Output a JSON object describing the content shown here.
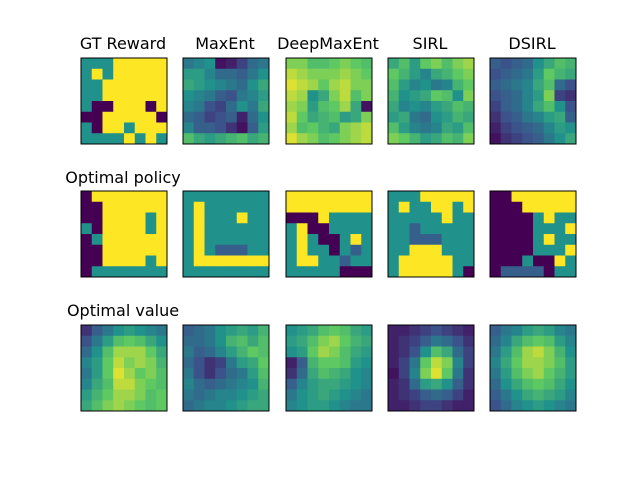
{
  "chart_data": {
    "type": "heatmap",
    "colormap": "viridis",
    "grid_size": [
      8,
      8
    ],
    "columns": [
      "GT Reward",
      "MaxEnt",
      "DeepMaxEnt",
      "SIRL",
      "DSIRL"
    ],
    "rows": [
      "",
      "Optimal policy",
      "Optimal value"
    ],
    "panels": [
      [
        [
          [
            0.5,
            0.5,
            0.5,
            1,
            1,
            1,
            1,
            1
          ],
          [
            0.5,
            1,
            0.5,
            1,
            1,
            1,
            1,
            1
          ],
          [
            0.5,
            0.5,
            1,
            1,
            1,
            1,
            1,
            1
          ],
          [
            0.5,
            0.5,
            1,
            1,
            1,
            1,
            1,
            1
          ],
          [
            0.5,
            0,
            0,
            1,
            1,
            1,
            0,
            1
          ],
          [
            0,
            0,
            1,
            1,
            1,
            1,
            1,
            0
          ],
          [
            0.5,
            0,
            1,
            1,
            0.5,
            1,
            1,
            1
          ],
          [
            0.5,
            0.5,
            0.5,
            0.5,
            1,
            0.5,
            1,
            0.5
          ]
        ],
        [
          [
            0.4,
            0.45,
            0.5,
            0.05,
            0.1,
            0.2,
            0.35,
            0.4
          ],
          [
            0.55,
            0.55,
            0.45,
            0.35,
            0.35,
            0.3,
            0.4,
            0.5
          ],
          [
            0.6,
            0.55,
            0.5,
            0.45,
            0.4,
            0.35,
            0.5,
            0.6
          ],
          [
            0.5,
            0.45,
            0.4,
            0.3,
            0.25,
            0.4,
            0.45,
            0.55
          ],
          [
            0.45,
            0.4,
            0.25,
            0.2,
            0.35,
            0.5,
            0.4,
            0.6
          ],
          [
            0.35,
            0.3,
            0.2,
            0.25,
            0.3,
            0.1,
            0.35,
            0.5
          ],
          [
            0.45,
            0.3,
            0.3,
            0.25,
            0.15,
            0.05,
            0.3,
            0.55
          ],
          [
            0.7,
            0.6,
            0.55,
            0.6,
            0.65,
            0.7,
            0.6,
            0.65
          ]
        ],
        [
          [
            0.8,
            0.8,
            0.7,
            0.7,
            0.75,
            0.8,
            0.75,
            0.7
          ],
          [
            0.9,
            0.85,
            0.8,
            0.8,
            0.8,
            0.85,
            0.8,
            0.75
          ],
          [
            0.95,
            0.9,
            0.85,
            0.75,
            0.85,
            0.9,
            0.8,
            0.8
          ],
          [
            0.9,
            0.85,
            0.5,
            0.6,
            0.8,
            0.9,
            0.7,
            0.8
          ],
          [
            0.85,
            0.8,
            0.55,
            0.7,
            0.75,
            0.85,
            0.6,
            0.05
          ],
          [
            0.9,
            0.75,
            0.6,
            0.65,
            0.7,
            0.55,
            0.6,
            0.8
          ],
          [
            0.85,
            0.7,
            0.75,
            0.65,
            0.6,
            0.8,
            0.85,
            0.9
          ],
          [
            0.95,
            0.85,
            0.8,
            0.7,
            0.75,
            0.8,
            0.85,
            0.9
          ]
        ],
        [
          [
            0.6,
            0.7,
            0.55,
            0.75,
            0.8,
            0.7,
            0.8,
            0.85
          ],
          [
            0.75,
            0.65,
            0.55,
            0.45,
            0.6,
            0.65,
            0.75,
            0.8
          ],
          [
            0.7,
            0.55,
            0.45,
            0.5,
            0.4,
            0.45,
            0.65,
            0.75
          ],
          [
            0.65,
            0.5,
            0.55,
            0.6,
            0.75,
            0.7,
            0.5,
            0.8
          ],
          [
            0.6,
            0.45,
            0.5,
            0.45,
            0.55,
            0.6,
            0.7,
            0.65
          ],
          [
            0.55,
            0.6,
            0.4,
            0.35,
            0.5,
            0.55,
            0.65,
            0.6
          ],
          [
            0.7,
            0.55,
            0.45,
            0.4,
            0.45,
            0.6,
            0.55,
            0.7
          ],
          [
            0.8,
            0.75,
            0.65,
            0.55,
            0.6,
            0.7,
            0.65,
            0.8
          ]
        ],
        [
          [
            0.3,
            0.25,
            0.3,
            0.35,
            0.5,
            0.6,
            0.7,
            0.65
          ],
          [
            0.25,
            0.3,
            0.35,
            0.4,
            0.55,
            0.75,
            0.65,
            0.6
          ],
          [
            0.3,
            0.35,
            0.4,
            0.45,
            0.6,
            0.7,
            0.35,
            0.25
          ],
          [
            0.25,
            0.3,
            0.35,
            0.45,
            0.55,
            0.8,
            0.2,
            0.15
          ],
          [
            0.2,
            0.3,
            0.35,
            0.45,
            0.6,
            0.7,
            0.5,
            0.25
          ],
          [
            0.15,
            0.25,
            0.3,
            0.4,
            0.45,
            0.55,
            0.6,
            0.3
          ],
          [
            0.1,
            0.2,
            0.25,
            0.3,
            0.35,
            0.45,
            0.55,
            0.5
          ],
          [
            0.05,
            0.15,
            0.2,
            0.25,
            0.3,
            0.4,
            0.5,
            0.6
          ]
        ]
      ],
      [
        [
          [
            0,
            1,
            1,
            1,
            1,
            1,
            1,
            1
          ],
          [
            0,
            0,
            1,
            1,
            1,
            1,
            1,
            1
          ],
          [
            0,
            0,
            1,
            1,
            1,
            1,
            0.5,
            1
          ],
          [
            0.5,
            0,
            1,
            1,
            1,
            1,
            0.5,
            1
          ],
          [
            0,
            0.5,
            1,
            1,
            1,
            1,
            1,
            1
          ],
          [
            0,
            0,
            1,
            1,
            1,
            1,
            1,
            1
          ],
          [
            0,
            0,
            1,
            1,
            1,
            1,
            0.5,
            1
          ],
          [
            0,
            0.5,
            0.5,
            0.5,
            0.5,
            0.5,
            0.5,
            0.5
          ]
        ],
        [
          [
            0.5,
            0.5,
            0.5,
            0.5,
            0.5,
            0.5,
            0.5,
            0.5
          ],
          [
            0.5,
            1,
            0.5,
            0.5,
            0.5,
            0.5,
            0.5,
            0.5
          ],
          [
            0.5,
            1,
            0.5,
            0.5,
            0.5,
            1,
            0.5,
            0.5
          ],
          [
            0.5,
            1,
            0.5,
            0.5,
            0.5,
            0.5,
            0.5,
            0.5
          ],
          [
            0.5,
            1,
            0.5,
            0.5,
            0.5,
            0.5,
            0.5,
            0.5
          ],
          [
            0.5,
            1,
            0.5,
            0.3,
            0.3,
            0.3,
            0.5,
            0.5
          ],
          [
            0.5,
            1,
            1,
            1,
            1,
            1,
            1,
            1
          ],
          [
            0.5,
            0.5,
            0.5,
            0.5,
            0.5,
            0.5,
            0.5,
            0.5
          ]
        ],
        [
          [
            1,
            1,
            1,
            1,
            1,
            1,
            1,
            1
          ],
          [
            1,
            1,
            1,
            1,
            1,
            1,
            1,
            1
          ],
          [
            0,
            0,
            0,
            1,
            0.5,
            0.5,
            0.5,
            0.5
          ],
          [
            0.5,
            1,
            0,
            0,
            0.5,
            0.5,
            0.5,
            0.5
          ],
          [
            0.5,
            1,
            0.5,
            0,
            0,
            0.5,
            1,
            0.5
          ],
          [
            0.5,
            1,
            0.5,
            0.5,
            0,
            0.5,
            0.3,
            0.5
          ],
          [
            0.5,
            1,
            1,
            0.5,
            0.5,
            0.3,
            0.5,
            0.5
          ],
          [
            0.5,
            0.5,
            0.5,
            0.5,
            0.5,
            0,
            0,
            0
          ]
        ],
        [
          [
            0.5,
            0.5,
            0.5,
            1,
            1,
            1,
            1,
            1
          ],
          [
            0.5,
            1,
            0.5,
            0.5,
            1,
            1,
            0.5,
            1
          ],
          [
            0.5,
            0.5,
            0.5,
            0.5,
            0.5,
            1,
            0.5,
            0.5
          ],
          [
            0.5,
            0.5,
            0.3,
            0.5,
            0.5,
            0.5,
            0.5,
            0.5
          ],
          [
            0.5,
            0.5,
            0.3,
            0.3,
            0.3,
            0.5,
            0.5,
            0.5
          ],
          [
            0.5,
            0.5,
            1,
            1,
            1,
            0.5,
            0.5,
            0.5
          ],
          [
            0.5,
            1,
            1,
            1,
            1,
            1,
            0.5,
            0.5
          ],
          [
            0.5,
            1,
            1,
            1,
            1,
            1,
            0.5,
            0
          ]
        ],
        [
          [
            0,
            0,
            1,
            1,
            1,
            1,
            1,
            1
          ],
          [
            0,
            0,
            0,
            1,
            1,
            1,
            1,
            1
          ],
          [
            0,
            0,
            0,
            0,
            0.5,
            1,
            0.5,
            0.5
          ],
          [
            0,
            0,
            0,
            0,
            0.5,
            0.5,
            0.5,
            1
          ],
          [
            0,
            0,
            0,
            0,
            0.5,
            1,
            0.5,
            0.5
          ],
          [
            0,
            0,
            0,
            0,
            0.5,
            0.5,
            0.5,
            1
          ],
          [
            0,
            0,
            0,
            0.5,
            0,
            0,
            1,
            0.5
          ],
          [
            0,
            0.3,
            0.3,
            0.3,
            0.3,
            0,
            0.5,
            0.5
          ]
        ]
      ],
      [
        [
          [
            0.15,
            0.3,
            0.4,
            0.5,
            0.55,
            0.5,
            0.45,
            0.4
          ],
          [
            0.25,
            0.4,
            0.55,
            0.7,
            0.75,
            0.7,
            0.6,
            0.5
          ],
          [
            0.35,
            0.5,
            0.7,
            0.85,
            0.85,
            0.85,
            0.75,
            0.6
          ],
          [
            0.45,
            0.55,
            0.75,
            0.9,
            0.8,
            0.85,
            0.8,
            0.65
          ],
          [
            0.4,
            0.55,
            0.75,
            0.95,
            0.85,
            0.75,
            0.8,
            0.7
          ],
          [
            0.45,
            0.6,
            0.7,
            0.9,
            0.9,
            0.8,
            0.75,
            0.7
          ],
          [
            0.55,
            0.65,
            0.75,
            0.85,
            0.85,
            0.8,
            0.7,
            0.75
          ],
          [
            0.6,
            0.7,
            0.8,
            0.85,
            0.8,
            0.75,
            0.7,
            0.75
          ]
        ],
        [
          [
            0.3,
            0.35,
            0.4,
            0.5,
            0.55,
            0.6,
            0.55,
            0.65
          ],
          [
            0.35,
            0.35,
            0.4,
            0.5,
            0.65,
            0.7,
            0.6,
            0.7
          ],
          [
            0.4,
            0.3,
            0.35,
            0.45,
            0.55,
            0.65,
            0.75,
            0.7
          ],
          [
            0.35,
            0.25,
            0.15,
            0.2,
            0.4,
            0.55,
            0.6,
            0.75
          ],
          [
            0.4,
            0.25,
            0.15,
            0.25,
            0.35,
            0.4,
            0.55,
            0.7
          ],
          [
            0.45,
            0.35,
            0.3,
            0.35,
            0.4,
            0.45,
            0.5,
            0.65
          ],
          [
            0.4,
            0.35,
            0.4,
            0.45,
            0.45,
            0.5,
            0.55,
            0.6
          ],
          [
            0.35,
            0.4,
            0.45,
            0.45,
            0.5,
            0.55,
            0.6,
            0.6
          ]
        ],
        [
          [
            0.5,
            0.55,
            0.6,
            0.7,
            0.75,
            0.7,
            0.6,
            0.55
          ],
          [
            0.55,
            0.6,
            0.7,
            0.8,
            0.85,
            0.75,
            0.65,
            0.6
          ],
          [
            0.5,
            0.55,
            0.75,
            0.85,
            0.8,
            0.7,
            0.6,
            0.55
          ],
          [
            0.1,
            0.3,
            0.65,
            0.75,
            0.75,
            0.7,
            0.55,
            0.5
          ],
          [
            0.15,
            0.35,
            0.6,
            0.7,
            0.65,
            0.6,
            0.5,
            0.45
          ],
          [
            0.3,
            0.45,
            0.55,
            0.6,
            0.6,
            0.55,
            0.5,
            0.45
          ],
          [
            0.4,
            0.5,
            0.55,
            0.6,
            0.55,
            0.5,
            0.45,
            0.4
          ],
          [
            0.45,
            0.5,
            0.55,
            0.55,
            0.5,
            0.45,
            0.4,
            0.4
          ]
        ],
        [
          [
            0.1,
            0.1,
            0.15,
            0.2,
            0.25,
            0.2,
            0.15,
            0.1
          ],
          [
            0.1,
            0.15,
            0.2,
            0.3,
            0.4,
            0.35,
            0.25,
            0.15
          ],
          [
            0.1,
            0.15,
            0.25,
            0.5,
            0.7,
            0.6,
            0.35,
            0.2
          ],
          [
            0.1,
            0.2,
            0.4,
            0.75,
            0.9,
            0.8,
            0.45,
            0.2
          ],
          [
            0.05,
            0.2,
            0.45,
            0.8,
            0.95,
            0.75,
            0.4,
            0.15
          ],
          [
            0.1,
            0.15,
            0.35,
            0.55,
            0.6,
            0.5,
            0.3,
            0.15
          ],
          [
            0.1,
            0.15,
            0.2,
            0.3,
            0.35,
            0.3,
            0.2,
            0.1
          ],
          [
            0.1,
            0.1,
            0.15,
            0.2,
            0.2,
            0.15,
            0.1,
            0.1
          ]
        ],
        [
          [
            0.3,
            0.4,
            0.45,
            0.55,
            0.6,
            0.55,
            0.45,
            0.4
          ],
          [
            0.35,
            0.45,
            0.6,
            0.7,
            0.75,
            0.7,
            0.55,
            0.45
          ],
          [
            0.4,
            0.55,
            0.7,
            0.85,
            0.9,
            0.8,
            0.65,
            0.5
          ],
          [
            0.45,
            0.6,
            0.75,
            0.85,
            0.85,
            0.8,
            0.7,
            0.55
          ],
          [
            0.4,
            0.55,
            0.7,
            0.8,
            0.85,
            0.75,
            0.65,
            0.55
          ],
          [
            0.35,
            0.5,
            0.6,
            0.7,
            0.75,
            0.7,
            0.6,
            0.5
          ],
          [
            0.3,
            0.4,
            0.5,
            0.6,
            0.65,
            0.6,
            0.55,
            0.45
          ],
          [
            0.25,
            0.35,
            0.45,
            0.5,
            0.55,
            0.5,
            0.45,
            0.4
          ]
        ]
      ]
    ]
  }
}
